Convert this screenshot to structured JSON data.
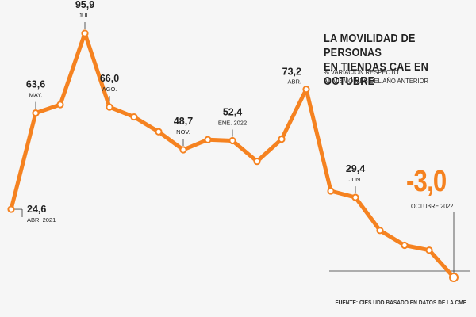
{
  "title_line1": "LA MOVILIDAD DE PERSONAS",
  "title_line2": "EN TIENDAS CAE EN OCTUBRE",
  "subtitle_line1": "% VARIACIÓN RESPECTO",
  "subtitle_line2": "AL MISMO MES DEL AÑO ANTERIOR",
  "source": "FUENTE: CIES UDD BASADO EN DATOS DE LA CMF",
  "highlight": {
    "value": "-3,0",
    "month": "OCTUBRE 2022"
  },
  "colors": {
    "line": "#f58220",
    "marker_fill": "#ffffff",
    "text": "#222222",
    "background": "#f6f6f6"
  },
  "chart_data": {
    "type": "line",
    "title": "LA MOVILIDAD DE PERSONAS EN TIENDAS CAE EN OCTUBRE",
    "subtitle": "% VARIACIÓN RESPECTO AL MISMO MES DEL AÑO ANTERIOR",
    "x": [
      "2021-04",
      "2021-05",
      "2021-06",
      "2021-07",
      "2021-08",
      "2021-09",
      "2021-10",
      "2021-11",
      "2021-12",
      "2022-01",
      "2022-02",
      "2022-03",
      "2022-04",
      "2022-05",
      "2022-06",
      "2022-07",
      "2022-08",
      "2022-09",
      "2022-10"
    ],
    "series": [
      {
        "values": [
          24.6,
          63.6,
          67.0,
          95.9,
          66.0,
          62.0,
          56.0,
          48.7,
          52.8,
          52.4,
          44.0,
          53.0,
          73.2,
          32.0,
          29.4,
          16.0,
          10.0,
          8.0,
          -3.0
        ]
      }
    ],
    "labels": [
      {
        "index": 0,
        "value": "24,6",
        "month": "ABR. 2021",
        "pos": "right"
      },
      {
        "index": 1,
        "value": "63,6",
        "month": "MAY.",
        "pos": "above"
      },
      {
        "index": 3,
        "value": "95,9",
        "month": "JUL.",
        "pos": "above"
      },
      {
        "index": 4,
        "value": "66,0",
        "month": "AGO.",
        "pos": "above"
      },
      {
        "index": 7,
        "value": "48,7",
        "month": "NOV.",
        "pos": "above"
      },
      {
        "index": 9,
        "value": "52,4",
        "month": "ENE. 2022",
        "pos": "above"
      },
      {
        "index": 12,
        "value": "73,2",
        "month": "ABR.",
        "pos": "above-left"
      },
      {
        "index": 14,
        "value": "29,4",
        "month": "JUN.",
        "pos": "above"
      }
    ],
    "grid": false,
    "legend": "none"
  }
}
